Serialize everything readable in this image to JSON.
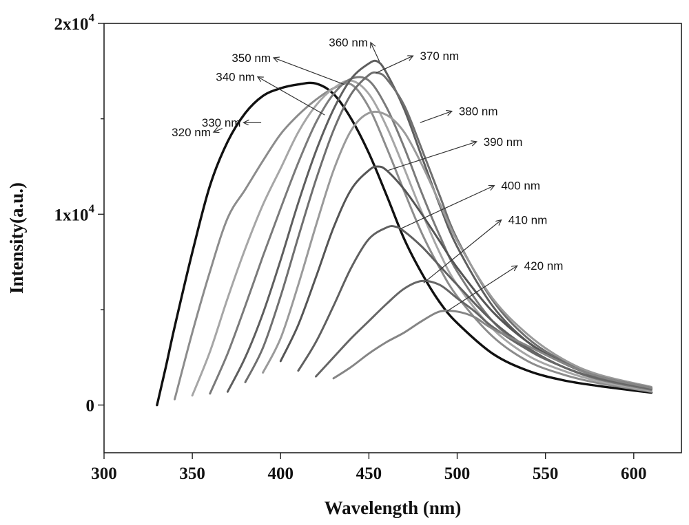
{
  "chart_data": {
    "type": "line",
    "title": "",
    "xlabel": "Wavelength (nm)",
    "ylabel": "Intensity(a.u.)",
    "xlim": [
      300,
      627
    ],
    "ylim": [
      -2500,
      20000
    ],
    "x_ticks": [
      {
        "value": 300,
        "label": "300"
      },
      {
        "value": 350,
        "label": "350"
      },
      {
        "value": 400,
        "label": "400"
      },
      {
        "value": 450,
        "label": "450"
      },
      {
        "value": 500,
        "label": "500"
      },
      {
        "value": 550,
        "label": "550"
      },
      {
        "value": 600,
        "label": "600"
      }
    ],
    "y_ticks": [
      {
        "value": 0,
        "base": "0",
        "exp": ""
      },
      {
        "value": 10000,
        "base": "1x10",
        "exp": "4"
      },
      {
        "value": 20000,
        "base": "2x10",
        "exp": "4"
      }
    ],
    "grid": false,
    "series": [
      {
        "name": "320 nm",
        "color": "#111111",
        "points": [
          [
            330,
            0
          ],
          [
            335,
            2000
          ],
          [
            340,
            4100
          ],
          [
            350,
            8000
          ],
          [
            360,
            11500
          ],
          [
            370,
            13800
          ],
          [
            380,
            15300
          ],
          [
            390,
            16200
          ],
          [
            400,
            16600
          ],
          [
            410,
            16800
          ],
          [
            420,
            16850
          ],
          [
            430,
            16300
          ],
          [
            440,
            15000
          ],
          [
            450,
            13200
          ],
          [
            460,
            11000
          ],
          [
            470,
            8700
          ],
          [
            480,
            6900
          ],
          [
            490,
            5400
          ],
          [
            500,
            4300
          ],
          [
            520,
            2700
          ],
          [
            540,
            1800
          ],
          [
            560,
            1300
          ],
          [
            580,
            1000
          ],
          [
            610,
            650
          ]
        ]
      },
      {
        "name": "330 nm",
        "color": "#8c8c8c",
        "points": [
          [
            340,
            300
          ],
          [
            350,
            3800
          ],
          [
            360,
            7000
          ],
          [
            370,
            9800
          ],
          [
            380,
            11300
          ],
          [
            390,
            12800
          ],
          [
            400,
            14200
          ],
          [
            410,
            15200
          ],
          [
            420,
            16000
          ],
          [
            430,
            16600
          ],
          [
            440,
            16800
          ],
          [
            450,
            15600
          ],
          [
            460,
            13500
          ],
          [
            470,
            11200
          ],
          [
            480,
            9000
          ],
          [
            490,
            7200
          ],
          [
            500,
            5700
          ],
          [
            520,
            3600
          ],
          [
            540,
            2300
          ],
          [
            560,
            1600
          ],
          [
            580,
            1150
          ],
          [
            610,
            700
          ]
        ]
      },
      {
        "name": "340 nm",
        "color": "#a6a6a6",
        "points": [
          [
            350,
            500
          ],
          [
            360,
            2800
          ],
          [
            370,
            5600
          ],
          [
            380,
            8200
          ],
          [
            390,
            10500
          ],
          [
            400,
            12400
          ],
          [
            410,
            14300
          ],
          [
            420,
            15700
          ],
          [
            430,
            16600
          ],
          [
            440,
            17000
          ],
          [
            450,
            16300
          ],
          [
            460,
            14600
          ],
          [
            470,
            12400
          ],
          [
            480,
            10100
          ],
          [
            490,
            8000
          ],
          [
            500,
            6300
          ],
          [
            520,
            4000
          ],
          [
            540,
            2600
          ],
          [
            560,
            1800
          ],
          [
            580,
            1250
          ],
          [
            610,
            750
          ]
        ]
      },
      {
        "name": "350 nm",
        "color": "#7a7a7a",
        "points": [
          [
            360,
            600
          ],
          [
            370,
            2700
          ],
          [
            380,
            5200
          ],
          [
            390,
            7800
          ],
          [
            400,
            10300
          ],
          [
            410,
            12700
          ],
          [
            420,
            14800
          ],
          [
            430,
            16300
          ],
          [
            440,
            17100
          ],
          [
            450,
            17000
          ],
          [
            460,
            15600
          ],
          [
            470,
            13500
          ],
          [
            480,
            11100
          ],
          [
            490,
            8900
          ],
          [
            500,
            7000
          ],
          [
            520,
            4400
          ],
          [
            540,
            2900
          ],
          [
            560,
            2000
          ],
          [
            580,
            1350
          ],
          [
            610,
            800
          ]
        ]
      },
      {
        "name": "360 nm",
        "color": "#5e5e5e",
        "points": [
          [
            370,
            700
          ],
          [
            380,
            2500
          ],
          [
            390,
            4800
          ],
          [
            400,
            7600
          ],
          [
            410,
            10600
          ],
          [
            420,
            13300
          ],
          [
            430,
            15500
          ],
          [
            440,
            17100
          ],
          [
            450,
            17900
          ],
          [
            455,
            18000
          ],
          [
            460,
            17400
          ],
          [
            470,
            15500
          ],
          [
            480,
            13000
          ],
          [
            490,
            10500
          ],
          [
            500,
            8300
          ],
          [
            520,
            5200
          ],
          [
            540,
            3300
          ],
          [
            560,
            2200
          ],
          [
            580,
            1500
          ],
          [
            610,
            850
          ]
        ]
      },
      {
        "name": "370 nm",
        "color": "#6f6f6f",
        "points": [
          [
            380,
            1200
          ],
          [
            390,
            3000
          ],
          [
            400,
            5700
          ],
          [
            410,
            8800
          ],
          [
            420,
            11800
          ],
          [
            430,
            14400
          ],
          [
            440,
            16300
          ],
          [
            450,
            17300
          ],
          [
            455,
            17400
          ],
          [
            460,
            17100
          ],
          [
            470,
            15700
          ],
          [
            480,
            13400
          ],
          [
            490,
            11000
          ],
          [
            500,
            8700
          ],
          [
            520,
            5500
          ],
          [
            540,
            3500
          ],
          [
            560,
            2300
          ],
          [
            580,
            1550
          ],
          [
            610,
            900
          ]
        ]
      },
      {
        "name": "380 nm",
        "color": "#9a9a9a",
        "points": [
          [
            390,
            1700
          ],
          [
            400,
            3500
          ],
          [
            410,
            6300
          ],
          [
            420,
            9400
          ],
          [
            430,
            12300
          ],
          [
            440,
            14400
          ],
          [
            450,
            15300
          ],
          [
            460,
            15200
          ],
          [
            470,
            14300
          ],
          [
            480,
            12600
          ],
          [
            490,
            10600
          ],
          [
            500,
            8600
          ],
          [
            520,
            5600
          ],
          [
            540,
            3700
          ],
          [
            560,
            2400
          ],
          [
            580,
            1600
          ],
          [
            610,
            950
          ]
        ]
      },
      {
        "name": "390 nm",
        "color": "#555555",
        "points": [
          [
            400,
            2300
          ],
          [
            410,
            4200
          ],
          [
            420,
            6700
          ],
          [
            430,
            9300
          ],
          [
            440,
            11300
          ],
          [
            450,
            12300
          ],
          [
            455,
            12500
          ],
          [
            460,
            12300
          ],
          [
            470,
            11300
          ],
          [
            480,
            10000
          ],
          [
            490,
            8600
          ],
          [
            500,
            7200
          ],
          [
            520,
            4900
          ],
          [
            540,
            3300
          ],
          [
            560,
            2200
          ],
          [
            580,
            1500
          ],
          [
            610,
            900
          ]
        ]
      },
      {
        "name": "400 nm",
        "color": "#606060",
        "points": [
          [
            410,
            1800
          ],
          [
            420,
            3300
          ],
          [
            430,
            5200
          ],
          [
            440,
            7200
          ],
          [
            450,
            8700
          ],
          [
            460,
            9300
          ],
          [
            465,
            9350
          ],
          [
            470,
            9100
          ],
          [
            480,
            8300
          ],
          [
            490,
            7300
          ],
          [
            500,
            6300
          ],
          [
            520,
            4400
          ],
          [
            540,
            3000
          ],
          [
            560,
            2000
          ],
          [
            580,
            1400
          ],
          [
            610,
            850
          ]
        ]
      },
      {
        "name": "410 nm",
        "color": "#666666",
        "points": [
          [
            420,
            1500
          ],
          [
            430,
            2500
          ],
          [
            440,
            3500
          ],
          [
            450,
            4400
          ],
          [
            460,
            5300
          ],
          [
            470,
            6100
          ],
          [
            480,
            6500
          ],
          [
            490,
            6300
          ],
          [
            500,
            5600
          ],
          [
            510,
            4900
          ],
          [
            520,
            4100
          ],
          [
            540,
            2900
          ],
          [
            560,
            2000
          ],
          [
            580,
            1400
          ],
          [
            610,
            850
          ]
        ]
      },
      {
        "name": "420 nm",
        "color": "#858585",
        "points": [
          [
            430,
            1400
          ],
          [
            440,
            2000
          ],
          [
            450,
            2700
          ],
          [
            460,
            3300
          ],
          [
            470,
            3800
          ],
          [
            480,
            4400
          ],
          [
            490,
            4900
          ],
          [
            500,
            4900
          ],
          [
            510,
            4600
          ],
          [
            520,
            4000
          ],
          [
            540,
            3100
          ],
          [
            560,
            2200
          ],
          [
            580,
            1500
          ],
          [
            610,
            900
          ]
        ]
      }
    ],
    "annotations": [
      {
        "text": "320 nm",
        "arrow_from": [
          367,
          14500
        ],
        "arrow_to": [
          362,
          14300
        ]
      },
      {
        "text": "330 nm",
        "arrow_from": [
          389,
          14800
        ],
        "arrow_to": [
          379,
          14800
        ]
      },
      {
        "text": "340 nm",
        "arrow_from": [
          425,
          15200
        ],
        "arrow_to": [
          387,
          17200
        ]
      },
      {
        "text": "350 nm",
        "arrow_from": [
          436,
          16800
        ],
        "arrow_to": [
          396,
          18200
        ]
      },
      {
        "text": "360 nm",
        "arrow_from": [
          456,
          18000
        ],
        "arrow_to": [
          451,
          19000
        ]
      },
      {
        "text": "370 nm",
        "arrow_from": [
          454,
          17400
        ],
        "arrow_to": [
          475,
          18300
        ]
      },
      {
        "text": "380 nm",
        "arrow_from": [
          479,
          14800
        ],
        "arrow_to": [
          497,
          15400
        ]
      },
      {
        "text": "390 nm",
        "arrow_from": [
          461,
          12300
        ],
        "arrow_to": [
          511,
          13800
        ]
      },
      {
        "text": "400 nm",
        "arrow_from": [
          467,
          9200
        ],
        "arrow_to": [
          521,
          11500
        ]
      },
      {
        "text": "410 nm",
        "arrow_from": [
          481,
          6400
        ],
        "arrow_to": [
          525,
          9700
        ]
      },
      {
        "text": "420 nm",
        "arrow_from": [
          494,
          4900
        ],
        "arrow_to": [
          534,
          7300
        ]
      }
    ]
  }
}
